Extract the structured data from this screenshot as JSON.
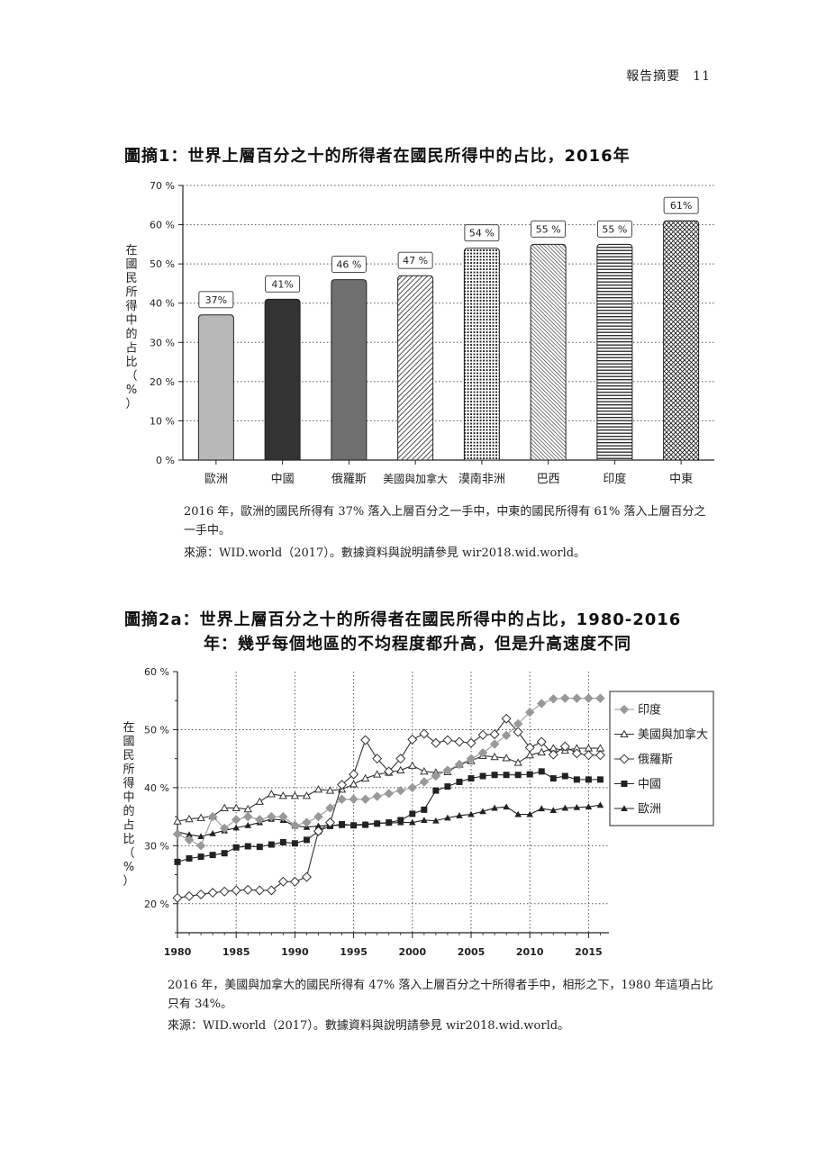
{
  "header": {
    "section": "報告摘要",
    "page_number": "11"
  },
  "figure1": {
    "title": "圖摘1：世界上層百分之十的所得者在國民所得中的占比，2016年",
    "caption": "2016 年，歐洲的國民所得有 37% 落入上層百分之一手中，中東的國民所得有 61% 落入上層百分之一手中。",
    "source": "來源：WID.world（2017）。數據資料與說明請參見 wir2018.wid.world。"
  },
  "figure2": {
    "title_line1": "圖摘2a：世界上層百分之十的所得者在國民所得中的占比，1980-2016",
    "title_line2": "年：幾乎每個地區的不均程度都升高，但是升高速度不同",
    "caption": "2016 年，美國與加拿大的國民所得有 47% 落入上層百分之十所得者手中，相形之下，1980 年這項占比只有 34%。",
    "source": "來源：WID.world（2017）。數據資料與說明請參見 wir2018.wid.world。"
  },
  "chart_data": [
    {
      "type": "bar",
      "ylabel": "在國民所得中的占比（%）",
      "ylim": [
        0,
        70
      ],
      "yticks": [
        "0 %",
        "10 %",
        "20 %",
        "30 %",
        "40 %",
        "50 %",
        "60 %",
        "70 %"
      ],
      "grid": "dotted horizontal",
      "categories": [
        "歐洲",
        "中國",
        "俄羅斯",
        "美國與加拿大",
        "漠南非洲",
        "巴西",
        "印度",
        "中東"
      ],
      "values": [
        37,
        41,
        46,
        47,
        54,
        55,
        55,
        61
      ],
      "value_labels": [
        "37%",
        "41%",
        "46 %",
        "47 %",
        "54 %",
        "55 %",
        "55 %",
        "61%"
      ],
      "patterns": [
        "light-gray",
        "dark",
        "gray",
        "diagonal",
        "dots",
        "diagonal-dense",
        "horizontal",
        "crosshatch"
      ],
      "colors": {
        "light": "#b8b8b8",
        "dark": "#333333",
        "mid": "#6f6f6f"
      }
    },
    {
      "type": "line",
      "ylabel": "在國民所得中的占比（%）",
      "ylim": [
        15,
        60
      ],
      "yticks": [
        "20 %",
        "30 %",
        "40 %",
        "50 %",
        "60 %"
      ],
      "xlim": [
        1980,
        2016
      ],
      "xticks": [
        "1980",
        "1985",
        "1990",
        "1995",
        "2000",
        "2005",
        "2010",
        "2015"
      ],
      "grid": "dotted",
      "legend_position": "right",
      "x": [
        1980,
        1981,
        1982,
        1983,
        1984,
        1985,
        1986,
        1987,
        1988,
        1989,
        1990,
        1991,
        1992,
        1993,
        1994,
        1995,
        1996,
        1997,
        1998,
        1999,
        2000,
        2001,
        2002,
        2003,
        2004,
        2005,
        2006,
        2007,
        2008,
        2009,
        2010,
        2011,
        2012,
        2013,
        2014,
        2015,
        2016
      ],
      "series": [
        {
          "name": "印度",
          "marker": "diamond-filled",
          "color": "#999999",
          "values": [
            32,
            31,
            30,
            35,
            33,
            34.5,
            35,
            34.5,
            35,
            35,
            33.5,
            34,
            35,
            36.5,
            38,
            38,
            38,
            38.5,
            39,
            39.5,
            40,
            41,
            42,
            43,
            44,
            45,
            46,
            47.5,
            49,
            51,
            53,
            54.5,
            55.3,
            55.4,
            55.4,
            55.4,
            55.4
          ]
        },
        {
          "name": "美國與加拿大",
          "marker": "triangle-open",
          "color": "#333333",
          "values": [
            34.2,
            34.6,
            34.8,
            35.1,
            36.5,
            36.5,
            36.3,
            37.6,
            38.9,
            38.6,
            38.6,
            38.6,
            39.7,
            39.5,
            39.7,
            40.6,
            41.6,
            42.3,
            42.6,
            43,
            43.8,
            42.8,
            42.6,
            42.7,
            44,
            44.6,
            45.5,
            45.3,
            45.1,
            44.3,
            45.6,
            46.1,
            46.8,
            46.4,
            46.8,
            46.8,
            46.8
          ]
        },
        {
          "name": "俄羅斯",
          "marker": "diamond-open",
          "color": "#333333",
          "values": [
            21,
            21.3,
            21.6,
            21.9,
            22.1,
            22.3,
            22.4,
            22.3,
            22.3,
            23.8,
            23.8,
            24.6,
            32.5,
            34,
            40.5,
            42.3,
            48.2,
            45,
            42.8,
            45,
            48.3,
            49.3,
            47.7,
            48.2,
            47.9,
            47.7,
            49.1,
            49.2,
            51.9,
            49.6,
            46.9,
            47.9,
            45.7,
            47.1,
            45.9,
            45.6,
            45.6
          ]
        },
        {
          "name": "中國",
          "marker": "square-filled",
          "color": "#222222",
          "values": [
            27.2,
            27.8,
            28.1,
            28.4,
            28.7,
            29.7,
            29.9,
            29.8,
            30.2,
            30.6,
            30.4,
            31,
            32.5,
            33.4,
            33.7,
            33.5,
            33.6,
            33.8,
            34,
            34.4,
            35.5,
            36.2,
            39.5,
            40.2,
            41,
            41.6,
            42,
            42.2,
            42.2,
            42.2,
            42.3,
            42.8,
            41.6,
            42,
            41.4,
            41.4,
            41.4
          ]
        },
        {
          "name": "歐洲",
          "marker": "triangle-filled",
          "color": "#222222",
          "values": [
            32.4,
            31.9,
            31.6,
            32.1,
            32.6,
            33.1,
            33.5,
            34,
            34.6,
            34.4,
            33.4,
            33.2,
            33.4,
            33.5,
            33.5,
            33.6,
            33.7,
            33.9,
            33.9,
            34,
            34,
            34.4,
            34.3,
            34.8,
            35.2,
            35.4,
            35.9,
            36.5,
            36.7,
            35.4,
            35.4,
            36.4,
            36.1,
            36.5,
            36.6,
            36.7,
            37
          ]
        }
      ]
    }
  ]
}
